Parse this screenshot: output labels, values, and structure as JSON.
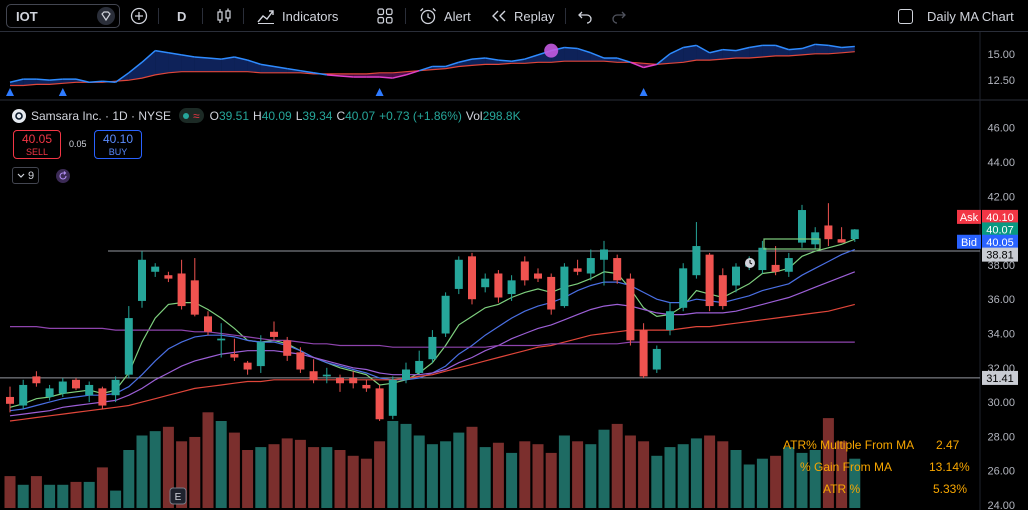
{
  "toolbar": {
    "symbol": "IOT",
    "interval": "D",
    "indicators_label": "Indicators",
    "alert_label": "Alert",
    "replay_label": "Replay",
    "daily_ma_label": "Daily MA Chart"
  },
  "legend": {
    "name": "Samsara Inc. · 1D · NYSE",
    "open_k": "O",
    "open_v": "39.51",
    "high_k": "H",
    "high_v": "40.09",
    "low_k": "L",
    "low_v": "39.34",
    "close_k": "C",
    "close_v": "40.07",
    "change": "+0.73 (+1.86%)",
    "vol_k": "Vol",
    "vol_v": "298.8K"
  },
  "trade": {
    "sell_price": "40.05",
    "sell_label": "SELL",
    "spread": "0.05",
    "buy_price": "40.10",
    "buy_label": "BUY"
  },
  "indicator_count": "9",
  "price_labels": {
    "ask_tag": "Ask",
    "ask": "40.10",
    "last": "40.07",
    "bid_tag": "Bid",
    "bid": "40.05",
    "line_upper": "38.81",
    "line_lower": "31.41"
  },
  "stats": {
    "atr_multiple_label": "ATR% Multiple From MA",
    "atr_multiple_value": "2.47",
    "gain_label": "% Gain From MA",
    "gain_value": "13.14%",
    "atr_label": "ATR %",
    "atr_value": "5.33%"
  },
  "colors": {
    "up": "#26a69a",
    "down": "#ef5350",
    "vol_up": "#1e6b63",
    "vol_down": "#7b2f2d",
    "ma_fast": "#7ecf7e",
    "ma_blue": "#4a6fe3",
    "ma_purple": "#9c5fd6",
    "ma_red": "#e0463a",
    "ma_long": "#8e44ad"
  },
  "chart_data": [
    {
      "type": "candlestick",
      "title": "Samsara Inc. · 1D · NYSE",
      "ylim": [
        24.0,
        46.8
      ],
      "y_ticks": [
        46.0,
        44.0,
        42.0,
        40.0,
        38.0,
        36.0,
        34.0,
        32.0,
        30.0,
        28.0,
        26.0,
        24.0
      ],
      "y_tick_labels": [
        "46.00",
        "44.00",
        "42.00",
        "40.00",
        "38.00",
        "36.00",
        "34.00",
        "32.00",
        "30.00",
        "28.00",
        "26.00",
        "24.00"
      ],
      "horizontal_lines": [
        38.81,
        31.41
      ],
      "candles": [
        {
          "o": 30.3,
          "h": 30.9,
          "l": 29.4,
          "c": 29.9
        },
        {
          "o": 29.8,
          "h": 31.3,
          "l": 29.6,
          "c": 31.0
        },
        {
          "o": 31.5,
          "h": 31.8,
          "l": 30.9,
          "c": 31.1
        },
        {
          "o": 30.3,
          "h": 31.0,
          "l": 30.1,
          "c": 30.8
        },
        {
          "o": 30.5,
          "h": 31.4,
          "l": 30.3,
          "c": 31.2
        },
        {
          "o": 31.3,
          "h": 31.4,
          "l": 30.7,
          "c": 30.8
        },
        {
          "o": 30.4,
          "h": 31.2,
          "l": 30.0,
          "c": 31.0
        },
        {
          "o": 30.8,
          "h": 30.9,
          "l": 29.6,
          "c": 29.8
        },
        {
          "o": 30.4,
          "h": 31.5,
          "l": 30.0,
          "c": 31.3
        },
        {
          "o": 31.6,
          "h": 35.6,
          "l": 31.4,
          "c": 34.9
        },
        {
          "o": 35.9,
          "h": 38.8,
          "l": 35.5,
          "c": 38.3
        },
        {
          "o": 37.6,
          "h": 38.1,
          "l": 37.3,
          "c": 37.9
        },
        {
          "o": 37.4,
          "h": 37.6,
          "l": 37.0,
          "c": 37.2
        },
        {
          "o": 37.5,
          "h": 38.3,
          "l": 35.4,
          "c": 35.6
        },
        {
          "o": 37.1,
          "h": 38.4,
          "l": 35.0,
          "c": 35.1
        },
        {
          "o": 35.0,
          "h": 35.3,
          "l": 33.9,
          "c": 34.1
        },
        {
          "o": 33.6,
          "h": 34.6,
          "l": 32.6,
          "c": 33.7
        },
        {
          "o": 32.8,
          "h": 33.7,
          "l": 32.4,
          "c": 32.6
        },
        {
          "o": 32.3,
          "h": 32.4,
          "l": 31.6,
          "c": 31.9
        },
        {
          "o": 32.1,
          "h": 33.9,
          "l": 31.7,
          "c": 33.5
        },
        {
          "o": 34.1,
          "h": 34.7,
          "l": 33.6,
          "c": 33.8
        },
        {
          "o": 33.6,
          "h": 33.8,
          "l": 32.4,
          "c": 32.7
        },
        {
          "o": 32.9,
          "h": 33.2,
          "l": 31.7,
          "c": 31.9
        },
        {
          "o": 31.8,
          "h": 32.5,
          "l": 31.1,
          "c": 31.3
        },
        {
          "o": 31.5,
          "h": 32.0,
          "l": 31.1,
          "c": 31.6
        },
        {
          "o": 31.4,
          "h": 31.6,
          "l": 30.6,
          "c": 31.1
        },
        {
          "o": 31.4,
          "h": 31.8,
          "l": 30.8,
          "c": 31.1
        },
        {
          "o": 31.0,
          "h": 31.3,
          "l": 30.6,
          "c": 30.8
        },
        {
          "o": 30.8,
          "h": 31.0,
          "l": 28.9,
          "c": 29.0
        },
        {
          "o": 29.2,
          "h": 31.5,
          "l": 29.0,
          "c": 31.3
        },
        {
          "o": 31.3,
          "h": 32.3,
          "l": 31.1,
          "c": 31.9
        },
        {
          "o": 31.7,
          "h": 33.0,
          "l": 31.6,
          "c": 32.4
        },
        {
          "o": 32.5,
          "h": 34.2,
          "l": 32.3,
          "c": 33.8
        },
        {
          "o": 34.0,
          "h": 36.4,
          "l": 33.8,
          "c": 36.2
        },
        {
          "o": 36.6,
          "h": 38.5,
          "l": 36.3,
          "c": 38.3
        },
        {
          "o": 38.5,
          "h": 38.7,
          "l": 35.7,
          "c": 36.0
        },
        {
          "o": 36.7,
          "h": 37.5,
          "l": 36.4,
          "c": 37.2
        },
        {
          "o": 37.5,
          "h": 37.7,
          "l": 35.8,
          "c": 36.1
        },
        {
          "o": 36.3,
          "h": 37.4,
          "l": 35.9,
          "c": 37.1
        },
        {
          "o": 38.2,
          "h": 38.5,
          "l": 36.8,
          "c": 37.1
        },
        {
          "o": 37.5,
          "h": 37.8,
          "l": 37.0,
          "c": 37.2
        },
        {
          "o": 37.3,
          "h": 37.5,
          "l": 35.1,
          "c": 35.4
        },
        {
          "o": 35.6,
          "h": 38.1,
          "l": 35.5,
          "c": 37.9
        },
        {
          "o": 37.8,
          "h": 38.3,
          "l": 37.4,
          "c": 37.6
        },
        {
          "o": 37.5,
          "h": 38.9,
          "l": 37.1,
          "c": 38.4
        },
        {
          "o": 38.3,
          "h": 39.4,
          "l": 36.8,
          "c": 38.9
        },
        {
          "o": 38.4,
          "h": 38.6,
          "l": 36.9,
          "c": 37.1
        },
        {
          "o": 37.2,
          "h": 37.5,
          "l": 33.3,
          "c": 33.6
        },
        {
          "o": 34.2,
          "h": 34.6,
          "l": 31.4,
          "c": 31.5
        },
        {
          "o": 31.9,
          "h": 33.3,
          "l": 31.7,
          "c": 33.1
        },
        {
          "o": 34.2,
          "h": 35.8,
          "l": 33.9,
          "c": 35.3
        },
        {
          "o": 35.5,
          "h": 38.1,
          "l": 35.3,
          "c": 37.8
        },
        {
          "o": 37.4,
          "h": 40.5,
          "l": 37.2,
          "c": 39.1
        },
        {
          "o": 38.6,
          "h": 38.7,
          "l": 35.3,
          "c": 35.6
        },
        {
          "o": 37.4,
          "h": 37.8,
          "l": 35.4,
          "c": 35.6
        },
        {
          "o": 36.8,
          "h": 38.1,
          "l": 36.4,
          "c": 37.9
        },
        {
          "o": 37.9,
          "h": 38.5,
          "l": 37.7,
          "c": 38.1
        },
        {
          "o": 37.7,
          "h": 39.4,
          "l": 37.5,
          "c": 39.0
        },
        {
          "o": 38.0,
          "h": 39.1,
          "l": 37.4,
          "c": 37.6
        },
        {
          "o": 37.6,
          "h": 38.7,
          "l": 37.3,
          "c": 38.4
        },
        {
          "o": 39.3,
          "h": 41.5,
          "l": 39.0,
          "c": 41.2
        },
        {
          "o": 39.2,
          "h": 40.2,
          "l": 38.9,
          "c": 39.9
        },
        {
          "o": 40.3,
          "h": 41.6,
          "l": 39.1,
          "c": 39.5
        },
        {
          "o": 39.5,
          "h": 40.2,
          "l": 39.3,
          "c": 39.3
        },
        {
          "o": 39.51,
          "h": 40.09,
          "l": 39.34,
          "c": 40.07
        }
      ],
      "moving_averages": [
        {
          "color": "#7ecf7e",
          "values": [
            29.7,
            29.9,
            30.2,
            30.3,
            30.5,
            30.6,
            30.7,
            30.5,
            30.7,
            31.7,
            33.5,
            34.9,
            35.7,
            35.8,
            35.8,
            35.4,
            34.9,
            34.3,
            33.6,
            33.5,
            33.6,
            33.4,
            33.0,
            32.6,
            32.3,
            32.0,
            31.8,
            31.6,
            31.0,
            31.1,
            31.3,
            31.7,
            32.3,
            33.3,
            34.5,
            35.0,
            35.5,
            35.7,
            36.1,
            36.4,
            36.6,
            36.4,
            36.7,
            36.9,
            37.2,
            37.6,
            37.5,
            36.6,
            35.5,
            35.0,
            35.1,
            35.6,
            36.5,
            36.3,
            36.1,
            36.5,
            36.9,
            37.5,
            37.6,
            37.8,
            38.5,
            38.8,
            39.0,
            39.2,
            39.5
          ]
        },
        {
          "color": "#4a6fe3",
          "values": [
            29.5,
            29.6,
            29.8,
            30.0,
            30.2,
            30.3,
            30.4,
            30.4,
            30.5,
            30.9,
            31.6,
            32.4,
            33.1,
            33.5,
            33.8,
            33.9,
            33.9,
            33.8,
            33.6,
            33.5,
            33.5,
            33.3,
            33.0,
            32.6,
            32.3,
            32.1,
            31.9,
            31.7,
            31.4,
            31.3,
            31.3,
            31.4,
            31.7,
            32.1,
            32.8,
            33.3,
            33.9,
            34.4,
            34.9,
            35.3,
            35.6,
            35.8,
            36.1,
            36.5,
            36.8,
            37.0,
            37.0,
            36.8,
            36.4,
            36.0,
            35.8,
            35.8,
            36.0,
            35.9,
            35.8,
            36.0,
            36.2,
            36.5,
            36.7,
            36.9,
            37.4,
            37.8,
            38.2,
            38.6,
            38.9
          ]
        },
        {
          "color": "#9c5fd6",
          "values": [
            29.2,
            29.3,
            29.4,
            29.5,
            29.7,
            29.8,
            29.9,
            30.0,
            30.1,
            30.4,
            30.8,
            31.3,
            31.7,
            32.1,
            32.4,
            32.6,
            32.8,
            32.9,
            33.0,
            33.0,
            33.0,
            32.9,
            32.8,
            32.6,
            32.4,
            32.2,
            32.0,
            31.9,
            31.7,
            31.6,
            31.6,
            31.6,
            31.7,
            31.9,
            32.3,
            32.6,
            33.0,
            33.3,
            33.7,
            34.0,
            34.3,
            34.5,
            34.8,
            35.1,
            35.4,
            35.6,
            35.7,
            35.6,
            35.4,
            35.2,
            35.1,
            35.1,
            35.2,
            35.2,
            35.2,
            35.3,
            35.5,
            35.7,
            35.9,
            36.1,
            36.4,
            36.7,
            37.0,
            37.3,
            37.6
          ]
        },
        {
          "color": "#e0463a",
          "values": [
            28.9,
            29.0,
            29.1,
            29.2,
            29.3,
            29.4,
            29.5,
            29.6,
            29.7,
            29.8,
            30.0,
            30.2,
            30.4,
            30.6,
            30.8,
            30.9,
            31.0,
            31.1,
            31.2,
            31.2,
            31.3,
            31.3,
            31.3,
            31.3,
            31.3,
            31.3,
            31.3,
            31.3,
            31.3,
            31.3,
            31.4,
            31.5,
            31.6,
            31.8,
            32.0,
            32.2,
            32.4,
            32.6,
            32.8,
            33.0,
            33.2,
            33.3,
            33.5,
            33.7,
            33.9,
            34.0,
            34.1,
            34.2,
            34.2,
            34.2,
            34.2,
            34.3,
            34.4,
            34.4,
            34.5,
            34.6,
            34.7,
            34.8,
            34.9,
            35.0,
            35.1,
            35.2,
            35.3,
            35.5,
            35.7
          ]
        },
        {
          "color": "#8e44ad",
          "values": [
            34.4,
            34.4,
            34.4,
            34.3,
            34.3,
            34.3,
            34.3,
            34.3,
            34.2,
            34.2,
            34.2,
            34.2,
            34.2,
            34.2,
            34.1,
            34.1,
            34.0,
            33.9,
            33.8,
            33.7,
            33.6,
            33.6,
            33.5,
            33.4,
            33.4,
            33.3,
            33.3,
            33.3,
            33.3,
            33.2,
            33.2,
            33.2,
            33.2,
            33.2,
            33.2,
            33.2,
            33.2,
            33.3,
            33.3,
            33.3,
            33.3,
            33.4,
            33.4,
            33.4,
            33.4,
            33.4,
            33.4,
            33.5,
            33.5,
            33.5,
            33.5,
            33.5,
            33.5,
            33.5,
            33.5,
            33.5,
            33.5,
            33.5,
            33.5,
            33.5,
            33.5,
            33.5,
            33.5,
            33.5,
            33.5
          ]
        }
      ],
      "volume": [
        22,
        16,
        22,
        16,
        16,
        18,
        18,
        28,
        12,
        40,
        50,
        53,
        56,
        46,
        49,
        66,
        60,
        52,
        40,
        42,
        44,
        48,
        47,
        42,
        42,
        40,
        36,
        34,
        46,
        60,
        58,
        50,
        44,
        46,
        52,
        56,
        42,
        45,
        38,
        46,
        44,
        38,
        50,
        46,
        44,
        54,
        58,
        50,
        46,
        36,
        42,
        44,
        48,
        50,
        46,
        40,
        30,
        34,
        36,
        42,
        38,
        40,
        62,
        46,
        34
      ]
    },
    {
      "type": "area",
      "title": "",
      "ylim": [
        11.0,
        16.5
      ],
      "y_ticks": [
        15.0,
        12.5
      ],
      "y_tick_labels": [
        "15.00",
        "12.50"
      ],
      "series_blue": [
        12.3,
        12.6,
        12.6,
        12.5,
        12.6,
        12.6,
        12.3,
        12.4,
        12.3,
        13.2,
        14.2,
        15.3,
        15.1,
        14.9,
        14.7,
        14.6,
        14.5,
        14.7,
        14.4,
        14.0,
        13.8,
        13.6,
        13.4,
        13.2,
        13.0,
        12.9,
        12.8,
        12.8,
        12.8,
        12.7,
        13.0,
        13.4,
        13.8,
        13.8,
        14.2,
        14.5,
        14.6,
        14.4,
        14.3,
        14.5,
        14.9,
        15.3,
        15.6,
        15.5,
        15.1,
        14.6,
        14.6,
        14.2,
        13.7,
        14.0,
        15.0,
        15.6,
        15.8,
        15.1,
        15.4,
        15.3,
        15.6,
        15.8,
        15.8,
        15.4,
        15.5,
        15.9,
        15.8,
        15.6,
        15.7
      ],
      "series_red": [
        12.0,
        12.0,
        12.1,
        12.1,
        12.2,
        12.3,
        12.3,
        12.3,
        12.4,
        12.5,
        12.7,
        13.0,
        13.2,
        13.3,
        13.3,
        13.3,
        13.3,
        13.3,
        13.3,
        13.2,
        13.2,
        13.2,
        13.2,
        13.1,
        13.1,
        13.1,
        13.1,
        13.1,
        13.2,
        13.2,
        13.3,
        13.4,
        13.5,
        13.6,
        13.8,
        13.9,
        14.0,
        14.0,
        14.1,
        14.1,
        14.2,
        14.2,
        14.3,
        14.3,
        14.3,
        14.3,
        14.2,
        14.2,
        14.1,
        14.0,
        14.1,
        14.2,
        14.4,
        14.4,
        14.5,
        14.6,
        14.6,
        14.7,
        14.8,
        14.8,
        14.9,
        15.0,
        15.0,
        15.1,
        15.2
      ],
      "markers_up": [
        0,
        4,
        28,
        48
      ],
      "marker_circle": 41
    }
  ]
}
